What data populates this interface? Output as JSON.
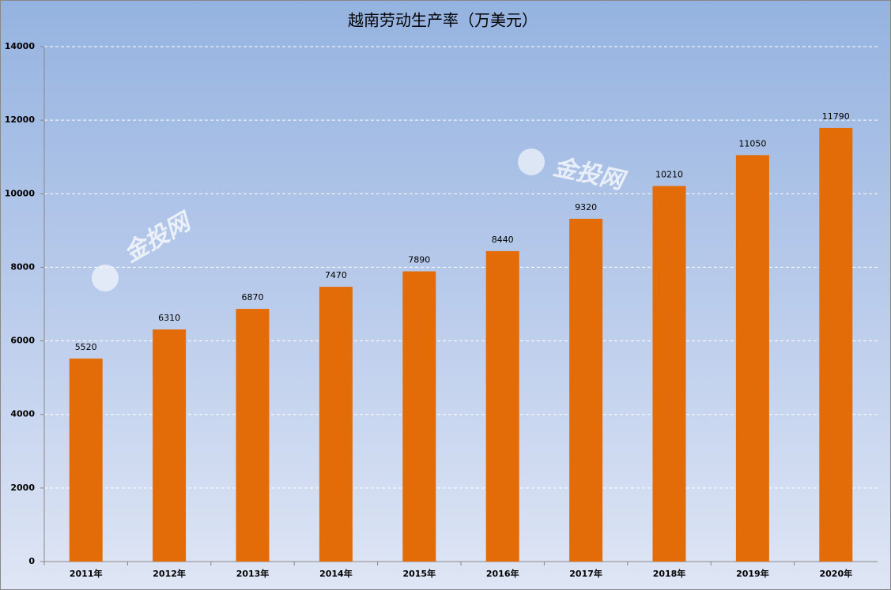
{
  "chart_data": {
    "type": "bar",
    "title": "越南劳动生产率（万美元）",
    "categories": [
      "2011年",
      "2012年",
      "2013年",
      "2014年",
      "2015年",
      "2016年",
      "2017年",
      "2018年",
      "2019年",
      "2020年"
    ],
    "values": [
      5520,
      6310,
      6870,
      7470,
      7890,
      8440,
      9320,
      10210,
      11050,
      11790
    ],
    "color": "#e36c09",
    "ylim": [
      0,
      14000
    ],
    "yticks": [
      0,
      2000,
      4000,
      6000,
      8000,
      10000,
      12000,
      14000
    ],
    "grid": true,
    "watermark": "金投网"
  }
}
